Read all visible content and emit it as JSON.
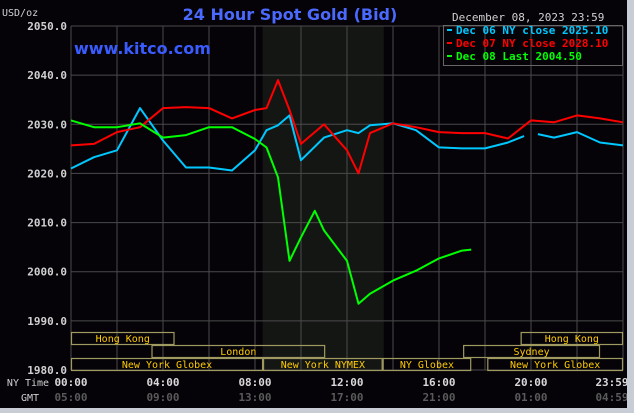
{
  "chart_data": {
    "type": "line",
    "title": "24 Hour Spot Gold (Bid)",
    "watermark": "www.kitco.com",
    "timestamp": "December 08, 2023 23:59",
    "ylabel": "USD/oz",
    "ylim": [
      1980,
      2050
    ],
    "yticks": [
      "2050.0",
      "2040.0",
      "2030.0",
      "2020.0",
      "2010.0",
      "2000.0",
      "1990.0",
      "1980.0"
    ],
    "ytick_values": [
      2050,
      2040,
      2030,
      2020,
      2010,
      2000,
      1990,
      1980
    ],
    "xlim_hours": [
      0,
      24
    ],
    "grid": true,
    "legend_placement": "top-right",
    "x_axis_rows": [
      {
        "label": "NY Time",
        "ticks": [
          "00:00",
          "04:00",
          "08:00",
          "12:00",
          "16:00",
          "20:00",
          "23:59"
        ]
      },
      {
        "label": "GMT",
        "ticks": [
          "05:00",
          "09:00",
          "13:00",
          "17:00",
          "21:00",
          "01:00",
          "04:59"
        ]
      }
    ],
    "x_tick_hours": [
      0,
      4,
      8,
      12,
      16,
      20,
      24
    ],
    "highlight_hours": [
      8.33,
      13.6
    ],
    "sessions": [
      {
        "name": "Hong Kong",
        "row": 0,
        "start": 0,
        "end": 4.5
      },
      {
        "name": "Hong Kong",
        "row": 0,
        "start": 19.55,
        "end": 24
      },
      {
        "name": "London",
        "row": 1,
        "start": 3.5,
        "end": 11.05
      },
      {
        "name": "Sydney",
        "row": 1,
        "start": 17.05,
        "end": 23
      },
      {
        "name": "New York Globex",
        "row": 2,
        "start": 0,
        "end": 8.35
      },
      {
        "name": "New York NYMEX",
        "row": 2,
        "start": 8.35,
        "end": 13.55
      },
      {
        "name": "NY Globex",
        "row": 2,
        "start": 13.55,
        "end": 17.4
      },
      {
        "name": "New York Globex",
        "row": 2,
        "start": 18.1,
        "end": 24
      }
    ],
    "series": [
      {
        "name": "Dec 06 NY close 2025.10",
        "color": "#00c8ff",
        "x": [
          0,
          1,
          2,
          3,
          4,
          5,
          6,
          7,
          8,
          8.5,
          9,
          9.5,
          10,
          11,
          12,
          12.5,
          13,
          14,
          15,
          16,
          17,
          18,
          19,
          19.7,
          "gap",
          20.3,
          21,
          22,
          23,
          24
        ],
        "values": [
          2021,
          2023.3,
          2024.7,
          2033.3,
          2026.7,
          2021.2,
          2021.2,
          2020.6,
          2024.7,
          2028.8,
          2029.8,
          2031.8,
          2022.7,
          2027.3,
          2028.8,
          2028.2,
          2029.8,
          2030.2,
          2028.8,
          2025.3,
          2025.1,
          2025.1,
          2026.3,
          2027.6,
          null,
          2028,
          2027.3,
          2028.4,
          2026.3,
          2025.7
        ]
      },
      {
        "name": "Dec 07 NY close 2028.10",
        "color": "#ff0000",
        "x": [
          0,
          1,
          2,
          3,
          4,
          5,
          6,
          7,
          8,
          8.5,
          9,
          9.5,
          10,
          11,
          12,
          12.5,
          13,
          14,
          15,
          16,
          17,
          18,
          19,
          20,
          21,
          22,
          23,
          24
        ],
        "values": [
          2025.7,
          2026,
          2028.4,
          2029.4,
          2033.3,
          2033.5,
          2033.3,
          2031.2,
          2032.9,
          2033.3,
          2039,
          2032.9,
          2026,
          2030,
          2024.7,
          2020,
          2028.2,
          2030.2,
          2029.4,
          2028.4,
          2028.2,
          2028.2,
          2027.1,
          2030.8,
          2030.4,
          2031.8,
          2031.2,
          2030.4
        ]
      },
      {
        "name": "Dec 08 Last 2004.50",
        "color": "#00ff00",
        "x": [
          0,
          1,
          2,
          3,
          4,
          5,
          6,
          7,
          8,
          8.5,
          9,
          9.5,
          10,
          10.6,
          11,
          12,
          12.5,
          13,
          14,
          15,
          16,
          17,
          17.4
        ],
        "values": [
          2030.8,
          2029.4,
          2029.4,
          2030.2,
          2027.3,
          2027.8,
          2029.4,
          2029.4,
          2027,
          2025.3,
          2019.2,
          2002.2,
          2007,
          2012.4,
          2008.4,
          2002.2,
          1993.5,
          1995.5,
          1998.2,
          2000.2,
          2002.7,
          2004.3,
          2004.5
        ]
      }
    ]
  }
}
